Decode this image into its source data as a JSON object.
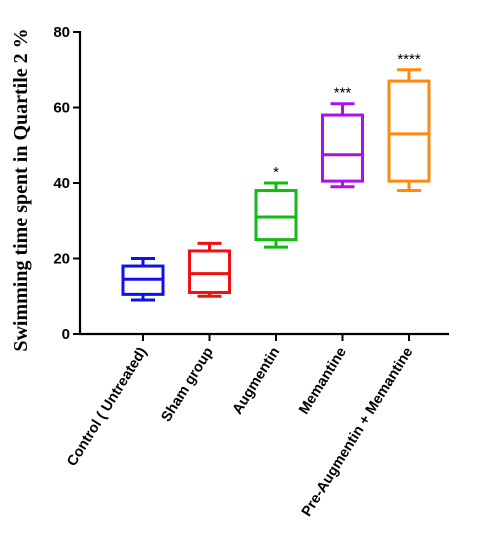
{
  "chart_data": {
    "type": "box",
    "title": "",
    "xlabel": "",
    "ylabel": "Swimming time spent in Quartile 2 %",
    "ylim": [
      0,
      80
    ],
    "yticks": [
      0,
      20,
      40,
      60,
      80
    ],
    "grid": false,
    "legend": "none",
    "categories": [
      "Control ( Untreated)",
      "Sham group",
      "Augmentin",
      "Memantine",
      "Pre-Augmentin + Memantine"
    ],
    "boxes": [
      {
        "min": 9,
        "q1": 10.5,
        "median": 14.5,
        "q3": 18,
        "max": 20,
        "color": "#1010ee",
        "annotation": ""
      },
      {
        "min": 10,
        "q1": 11,
        "median": 16,
        "q3": 22,
        "max": 24,
        "color": "#ee1111",
        "annotation": ""
      },
      {
        "min": 23,
        "q1": 25,
        "median": 31,
        "q3": 38,
        "max": 40,
        "color": "#11bb11",
        "annotation": "*"
      },
      {
        "min": 39,
        "q1": 40.5,
        "median": 47.5,
        "q3": 58,
        "max": 61,
        "color": "#aa11ee",
        "annotation": "***"
      },
      {
        "min": 38,
        "q1": 40.5,
        "median": 53,
        "q3": 67,
        "max": 70,
        "color": "#ff8811",
        "annotation": "****"
      }
    ]
  }
}
